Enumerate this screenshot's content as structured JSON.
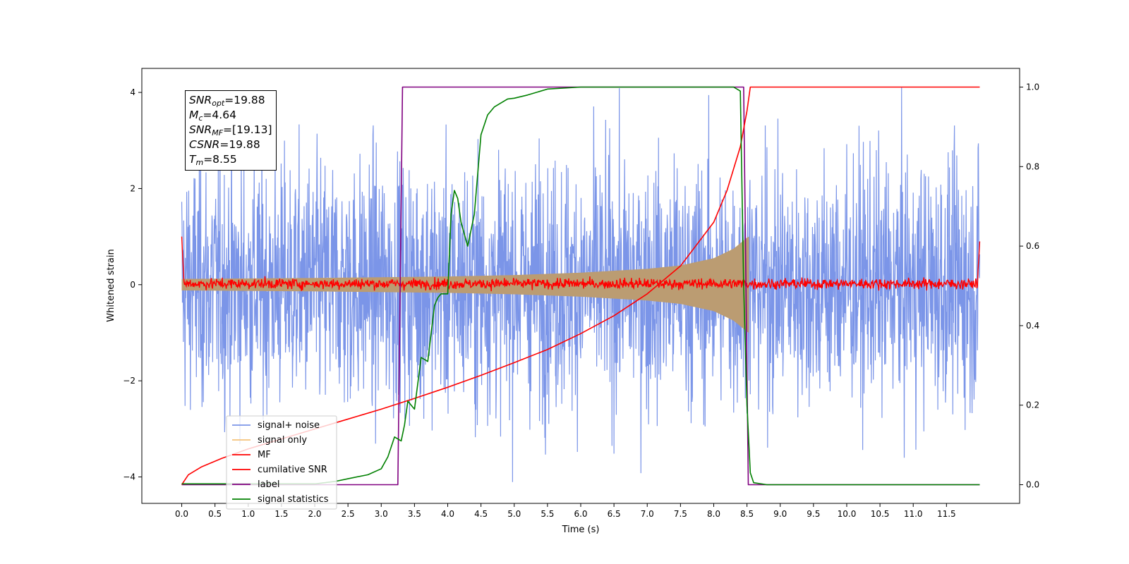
{
  "chart_data": {
    "type": "line",
    "xlabel": "Time (s)",
    "ylabel": "Whitened strain",
    "xlim": [
      -0.6,
      12.6
    ],
    "ylim_left": [
      -4.55,
      4.5
    ],
    "ylim_right": [
      -0.047,
      1.047
    ],
    "x_ticks": [
      "0.0",
      "0.5",
      "1.0",
      "1.5",
      "2.0",
      "2.5",
      "3.0",
      "3.5",
      "4.0",
      "4.5",
      "5.0",
      "5.5",
      "6.0",
      "6.5",
      "7.0",
      "7.5",
      "8.0",
      "8.5",
      "9.0",
      "9.5",
      "10.0",
      "10.5",
      "11.0",
      "11.5"
    ],
    "y_ticks_left": [
      "−4",
      "−2",
      "0",
      "2",
      "4"
    ],
    "y_ticks_right": [
      "0.0",
      "0.2",
      "0.4",
      "0.6",
      "0.8",
      "1.0"
    ],
    "grid": false,
    "legend_position": "lower-left",
    "legend": [
      {
        "label": "signal+ noise",
        "color": "#7b95e8"
      },
      {
        "label": "signal only",
        "color": "#f5c27a"
      },
      {
        "label": "MF",
        "color": "#ff0000"
      },
      {
        "label": "cumilative SNR",
        "color": "#ff0000"
      },
      {
        "label": "label",
        "color": "#800080"
      },
      {
        "label": "signal statistics",
        "color": "#008000"
      }
    ],
    "series": [
      {
        "name": "signal+ noise",
        "axis": "left",
        "kind": "noise",
        "x_range": [
          0,
          12.0
        ],
        "typical_amplitude": 1.8,
        "peak_min": -4.15,
        "peak_max": 4.1
      },
      {
        "name": "signal only",
        "axis": "left",
        "kind": "chirp-envelope",
        "x_range": [
          0,
          8.53
        ],
        "envelope": [
          [
            0,
            0.12
          ],
          [
            2,
            0.14
          ],
          [
            4,
            0.17
          ],
          [
            5,
            0.2
          ],
          [
            6,
            0.25
          ],
          [
            7,
            0.33
          ],
          [
            7.5,
            0.4
          ],
          [
            8,
            0.55
          ],
          [
            8.3,
            0.75
          ],
          [
            8.45,
            0.92
          ],
          [
            8.52,
            1.0
          ]
        ]
      },
      {
        "name": "MF",
        "axis": "left",
        "kind": "noise-around-zero",
        "x_range": [
          0,
          12.0
        ],
        "amplitude": 0.1,
        "start_value": 1.0,
        "end_value": 0.9
      },
      {
        "name": "cumilative SNR",
        "axis": "right",
        "x": [
          0,
          0.1,
          0.3,
          0.6,
          1,
          1.5,
          2,
          2.5,
          3,
          3.5,
          4,
          4.5,
          5,
          5.5,
          6,
          6.5,
          7,
          7.5,
          8,
          8.2,
          8.4,
          8.5,
          8.55,
          12.0
        ],
        "y": [
          0,
          0.025,
          0.045,
          0.066,
          0.09,
          0.115,
          0.14,
          0.165,
          0.19,
          0.217,
          0.245,
          0.275,
          0.307,
          0.34,
          0.38,
          0.425,
          0.48,
          0.55,
          0.66,
          0.74,
          0.85,
          0.94,
          1.0,
          1.0
        ]
      },
      {
        "name": "label",
        "axis": "right",
        "x": [
          0,
          3.25,
          3.32,
          8.45,
          8.52,
          12.0
        ],
        "y": [
          0,
          0,
          1,
          1,
          0,
          0
        ]
      },
      {
        "name": "signal statistics",
        "axis": "right",
        "x": [
          0,
          1,
          2,
          2.3,
          2.5,
          2.8,
          3.0,
          3.1,
          3.2,
          3.3,
          3.35,
          3.4,
          3.5,
          3.6,
          3.7,
          3.8,
          3.85,
          3.9,
          4.0,
          4.05,
          4.1,
          4.15,
          4.2,
          4.3,
          4.4,
          4.5,
          4.6,
          4.7,
          4.8,
          4.9,
          5.0,
          5.2,
          5.5,
          6.0,
          7.0,
          7.5,
          8.0,
          8.3,
          8.4,
          8.45,
          8.5,
          8.55,
          8.6,
          8.8,
          12.0
        ],
        "y": [
          0.002,
          0.002,
          0.002,
          0.008,
          0.015,
          0.025,
          0.04,
          0.07,
          0.12,
          0.11,
          0.15,
          0.21,
          0.19,
          0.32,
          0.31,
          0.45,
          0.47,
          0.48,
          0.48,
          0.68,
          0.74,
          0.72,
          0.66,
          0.6,
          0.68,
          0.88,
          0.93,
          0.95,
          0.96,
          0.97,
          0.972,
          0.98,
          0.995,
          1.0,
          1.0,
          1.0,
          1.0,
          1.0,
          0.99,
          0.5,
          0.2,
          0.03,
          0.005,
          0.0,
          0.0
        ]
      }
    ]
  },
  "infobox": {
    "lines": [
      {
        "label": "SNR",
        "sub": "opt",
        "value": "=19.88"
      },
      {
        "label": "M",
        "sub": "c",
        "value": "=4.64"
      },
      {
        "label": "SNR",
        "sub": "MF",
        "value": "=[19.13]"
      },
      {
        "label": "CSNR",
        "sub": "",
        "value": "=19.88"
      },
      {
        "label": "T",
        "sub": "m",
        "value": "=8.55"
      }
    ]
  }
}
